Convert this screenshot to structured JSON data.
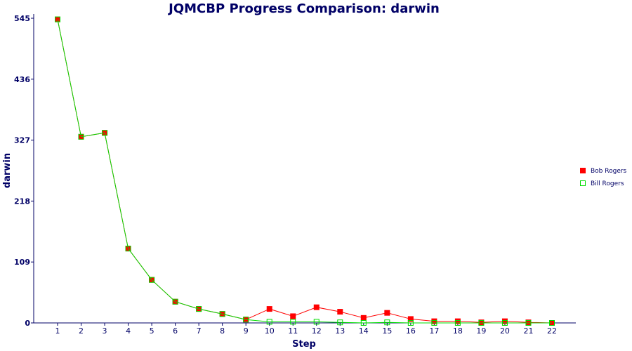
{
  "chart_data": {
    "type": "line",
    "title": "JQMCBP Progress Comparison: darwin",
    "xlabel": "Step",
    "ylabel": "darwin",
    "x": [
      1,
      2,
      3,
      4,
      5,
      6,
      7,
      8,
      9,
      10,
      11,
      12,
      13,
      14,
      15,
      16,
      17,
      18,
      19,
      20,
      21,
      22
    ],
    "ylim": [
      0,
      545
    ],
    "yticks": [
      0,
      109,
      218,
      327,
      436,
      545
    ],
    "grid": false,
    "legend_position": "right",
    "series": [
      {
        "name": "Bob Rogers",
        "color": "#ff0000",
        "marker": "filled-square",
        "values": [
          543,
          333,
          340,
          133,
          77,
          38,
          25,
          16,
          6,
          25,
          12,
          28,
          20,
          9,
          18,
          7,
          3,
          3,
          1,
          3,
          1,
          0
        ]
      },
      {
        "name": "Bill Rogers",
        "color": "#00dd00",
        "marker": "hollow-square",
        "values": [
          543,
          333,
          340,
          133,
          77,
          38,
          25,
          16,
          6,
          2,
          2,
          2,
          1,
          0,
          1,
          0,
          0,
          0,
          0,
          0,
          0,
          0
        ]
      }
    ]
  }
}
